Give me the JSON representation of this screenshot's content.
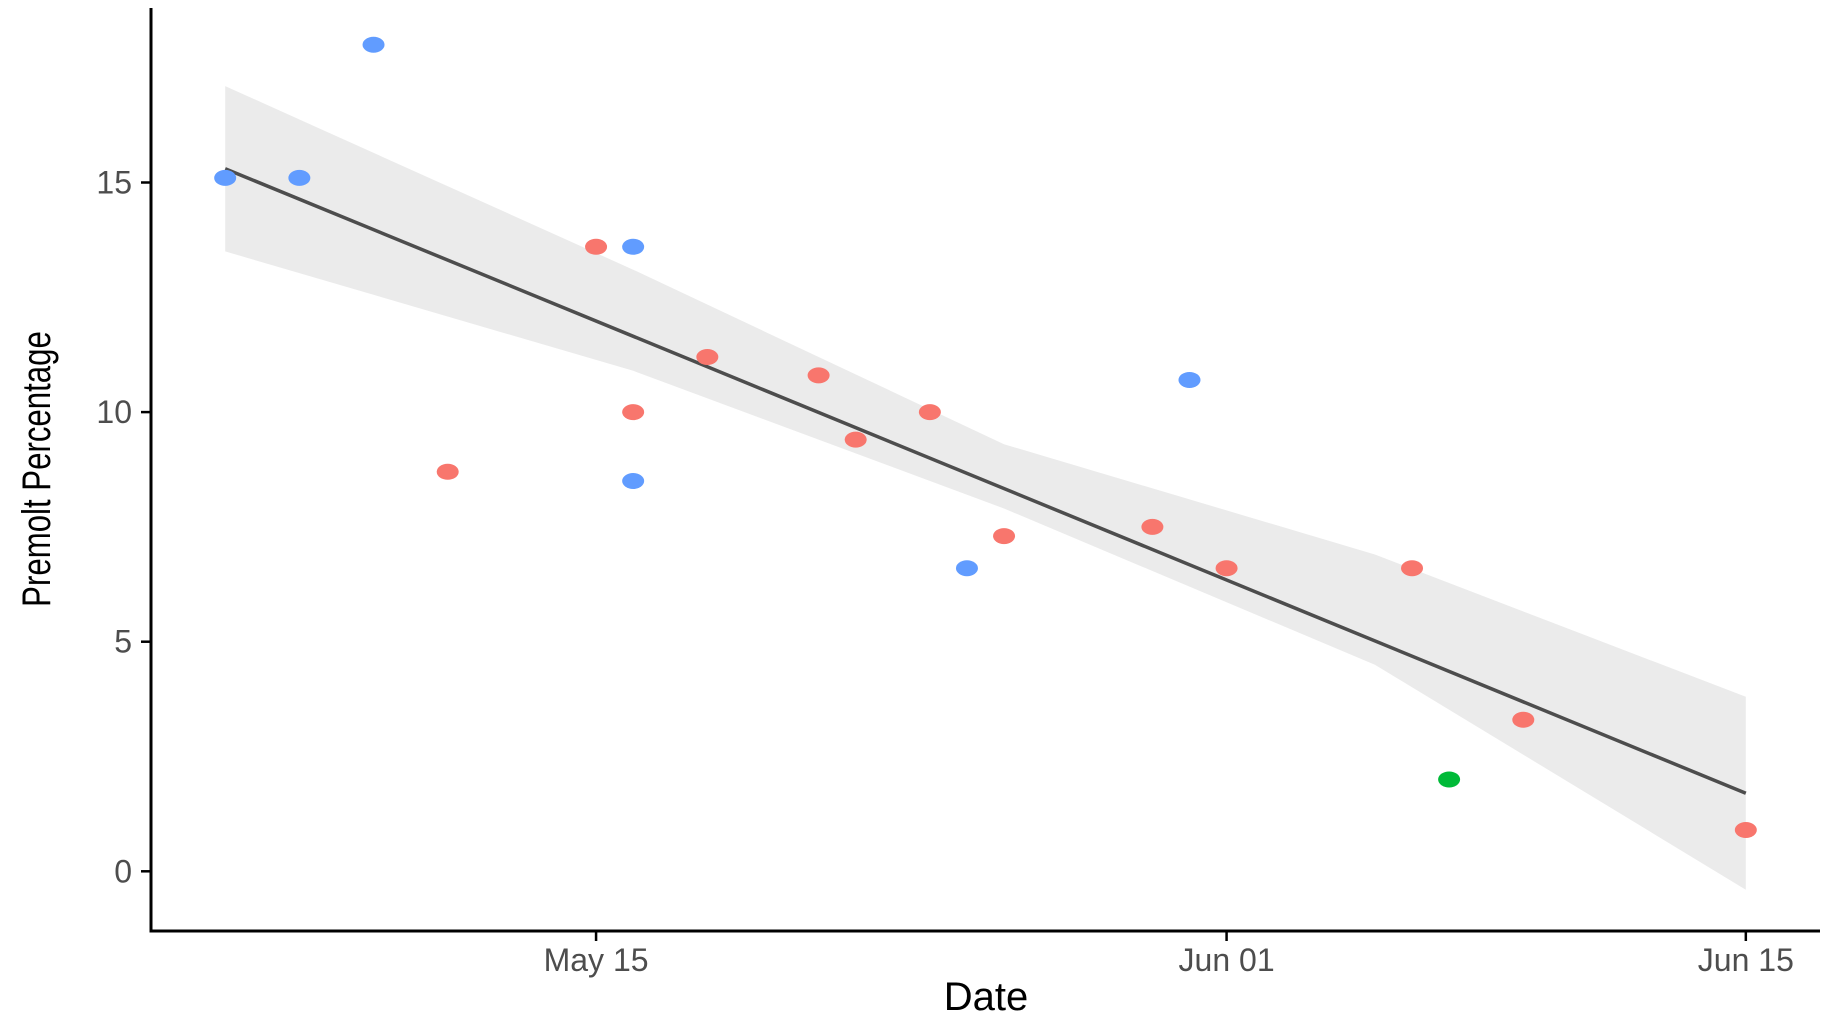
{
  "chart_data": {
    "type": "scatter",
    "title": "",
    "xlabel": "Date",
    "ylabel": "Premolt Percentage",
    "x_ticks": [
      "May 15",
      "Jun 01",
      "Jun 15"
    ],
    "y_ticks": [
      "0",
      "5",
      "10",
      "15"
    ],
    "ylim": [
      -1.3,
      18.8
    ],
    "xlim": [
      "2023-05-03",
      "2023-06-17"
    ],
    "grid": false,
    "legend": "none",
    "points": [
      {
        "x": "2023-05-05",
        "y": 15.1,
        "color": "#619CFF"
      },
      {
        "x": "2023-05-07",
        "y": 15.1,
        "color": "#619CFF"
      },
      {
        "x": "2023-05-09",
        "y": 18.0,
        "color": "#619CFF"
      },
      {
        "x": "2023-05-11",
        "y": 8.7,
        "color": "#F8766D"
      },
      {
        "x": "2023-05-15",
        "y": 13.6,
        "color": "#F8766D"
      },
      {
        "x": "2023-05-16",
        "y": 13.6,
        "color": "#619CFF"
      },
      {
        "x": "2023-05-16",
        "y": 10.0,
        "color": "#F8766D"
      },
      {
        "x": "2023-05-16",
        "y": 8.5,
        "color": "#619CFF"
      },
      {
        "x": "2023-05-18",
        "y": 11.2,
        "color": "#F8766D"
      },
      {
        "x": "2023-05-21",
        "y": 10.8,
        "color": "#F8766D"
      },
      {
        "x": "2023-05-22",
        "y": 9.4,
        "color": "#F8766D"
      },
      {
        "x": "2023-05-24",
        "y": 10.0,
        "color": "#F8766D"
      },
      {
        "x": "2023-05-25",
        "y": 6.6,
        "color": "#619CFF"
      },
      {
        "x": "2023-05-26",
        "y": 7.3,
        "color": "#F8766D"
      },
      {
        "x": "2023-05-30",
        "y": 7.5,
        "color": "#F8766D"
      },
      {
        "x": "2023-05-31",
        "y": 10.7,
        "color": "#619CFF"
      },
      {
        "x": "2023-06-01",
        "y": 6.6,
        "color": "#F8766D"
      },
      {
        "x": "2023-06-06",
        "y": 6.6,
        "color": "#F8766D"
      },
      {
        "x": "2023-06-07",
        "y": 2.0,
        "color": "#00BA38"
      },
      {
        "x": "2023-06-09",
        "y": 3.3,
        "color": "#F8766D"
      },
      {
        "x": "2023-06-15",
        "y": 0.9,
        "color": "#F8766D"
      }
    ],
    "trend_line": {
      "x": [
        "2023-05-05",
        "2023-06-15"
      ],
      "y": [
        15.3,
        1.7
      ],
      "color": "#4d4d4d"
    },
    "confidence_band": {
      "x": [
        "2023-05-05",
        "2023-05-16",
        "2023-05-26",
        "2023-06-05",
        "2023-06-15"
      ],
      "upper": [
        17.1,
        13.1,
        9.3,
        6.9,
        3.8
      ],
      "lower": [
        13.5,
        10.9,
        7.9,
        4.5,
        -0.4
      ],
      "color": "#ebebeb"
    }
  }
}
